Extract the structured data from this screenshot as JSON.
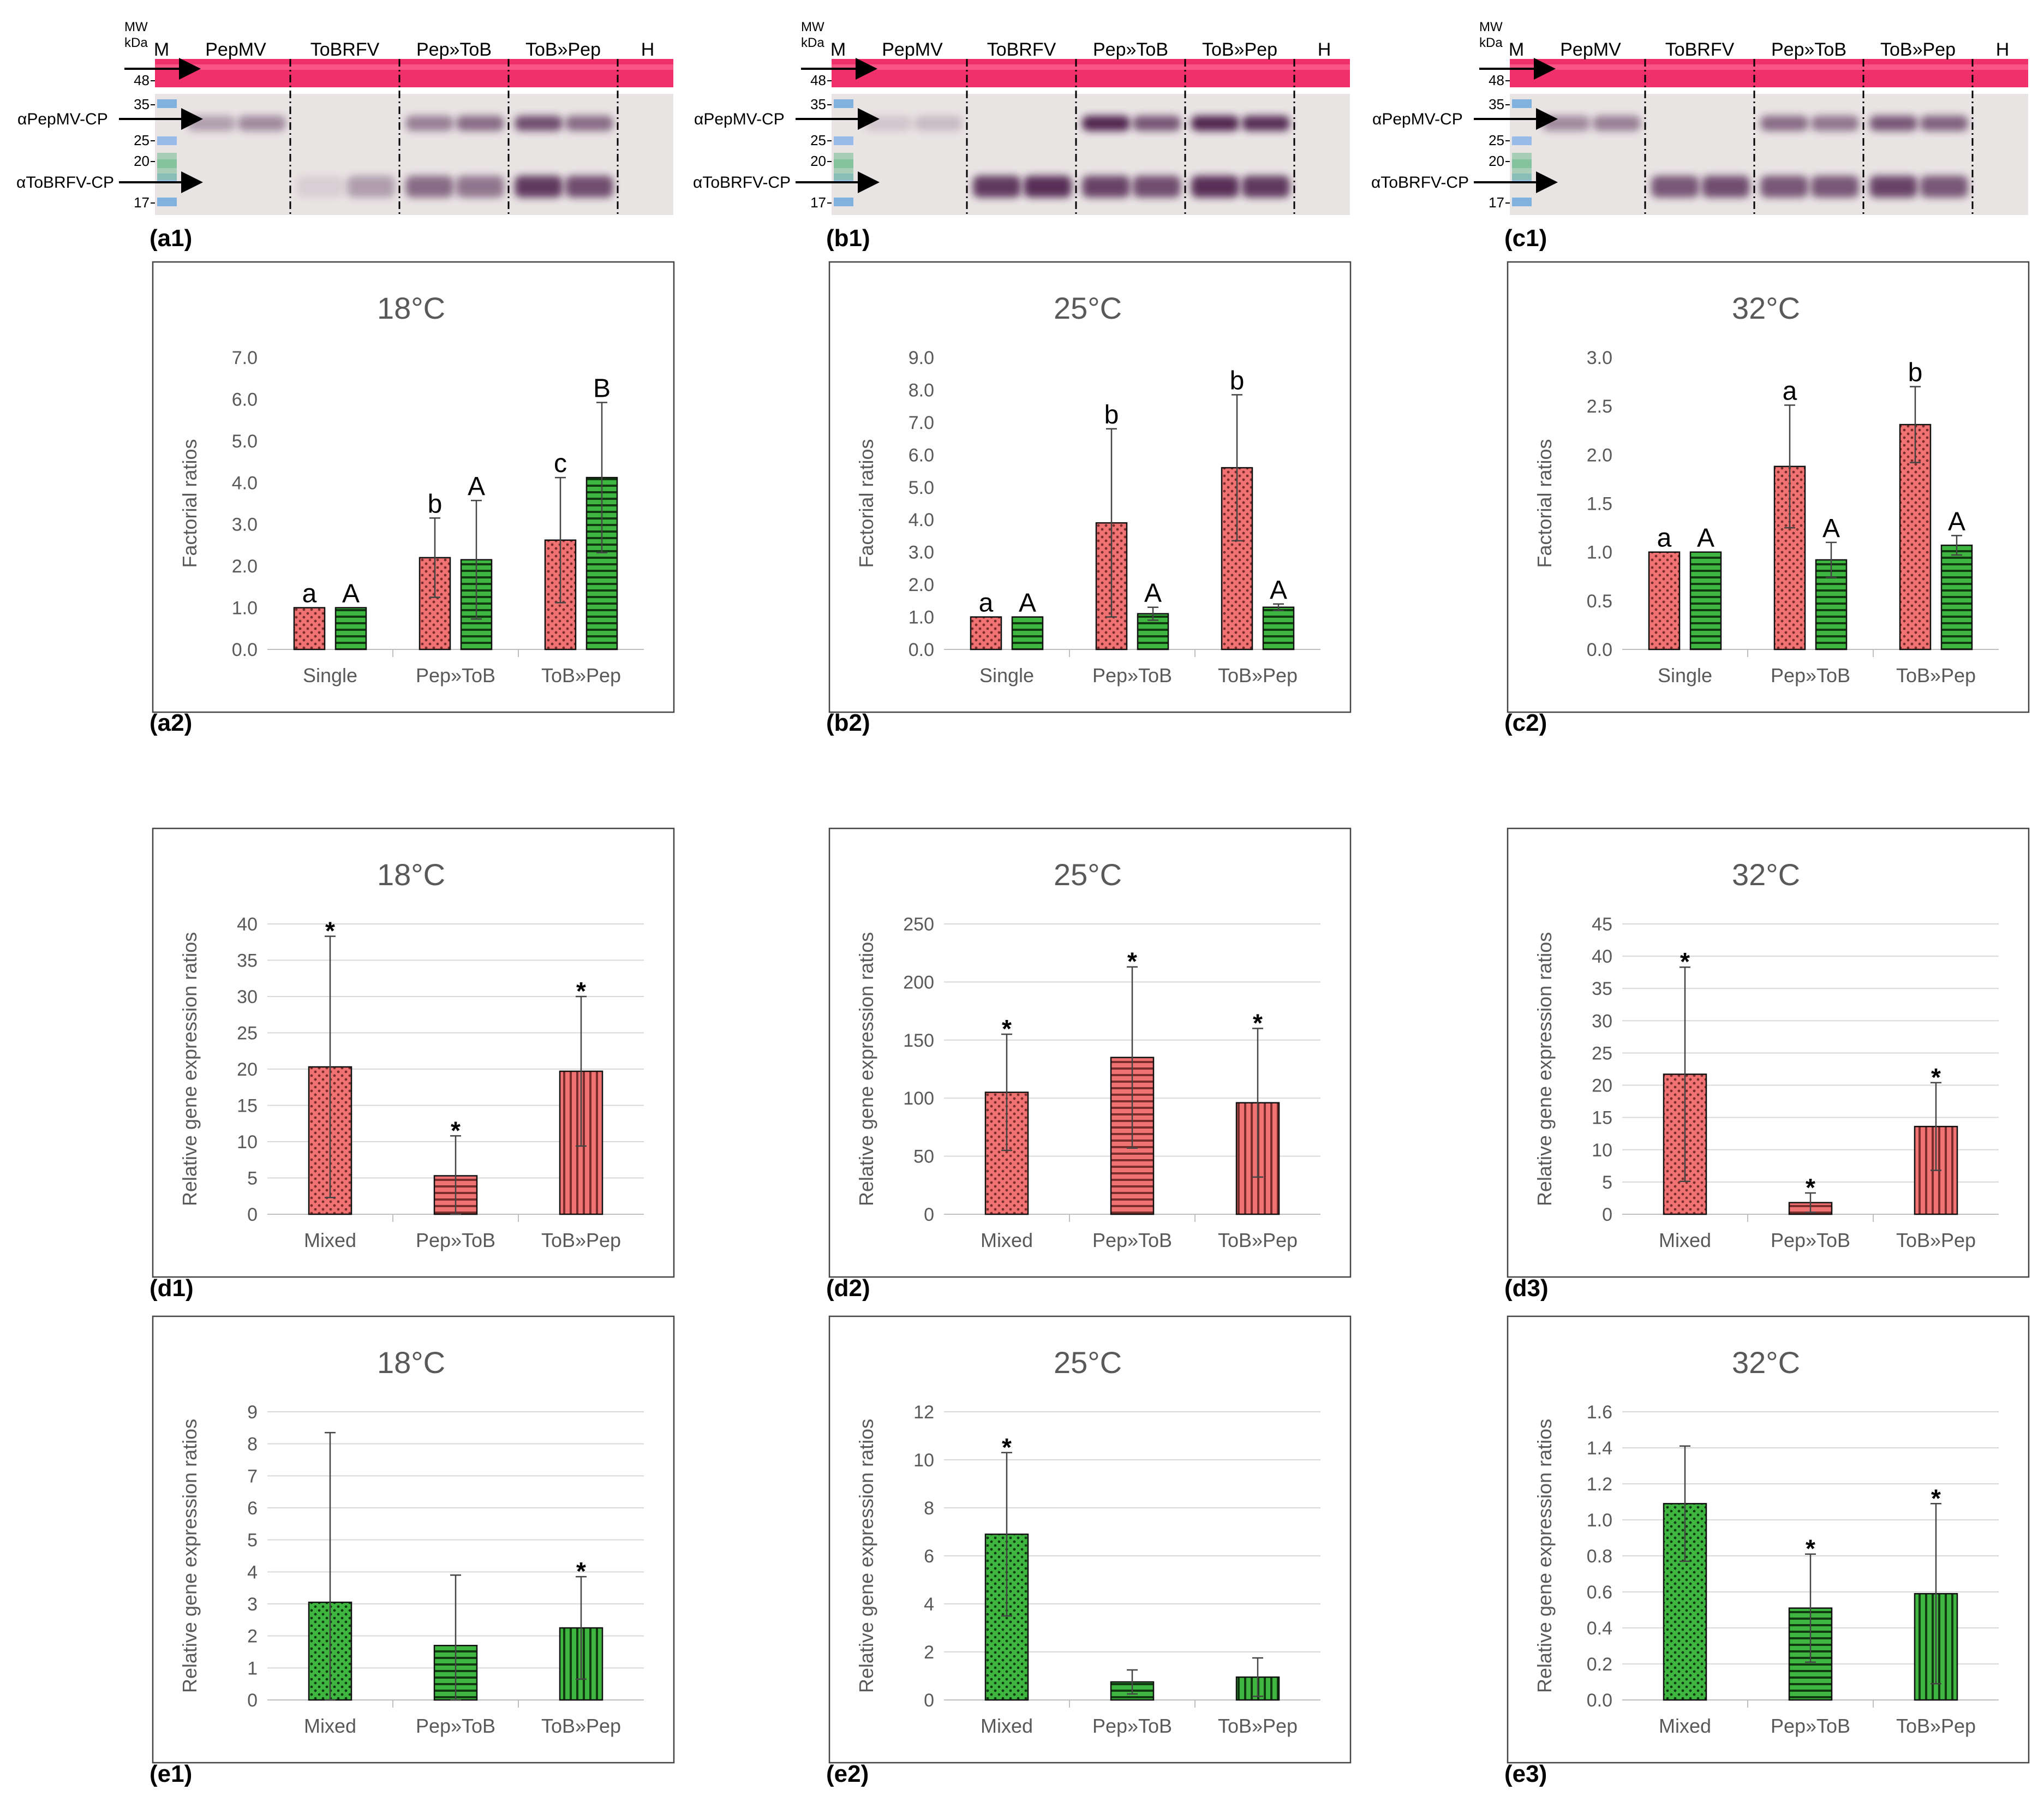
{
  "colors": {
    "pepmv": "#F07272",
    "tobrfv": "#3FB63F",
    "axis_text": "#595959",
    "grid": "#D9D9D9",
    "blot_bg": "#E9E4E4",
    "ponceau": "#F0306A",
    "band": "#4A1B4A"
  },
  "blots": [
    {
      "id": "a1",
      "mw_label": [
        "MW",
        "kDa"
      ],
      "marker_label": "M",
      "lanes": [
        "PepMV",
        "ToBRFV",
        "Pep»ToB",
        "ToB»Pep",
        "H"
      ],
      "mw_marks": [
        "48",
        "35",
        "25",
        "20",
        "17"
      ],
      "antibodies": [
        "αPepMV-CP",
        "αToBRFV-CP"
      ],
      "pepmv_band_intensity": [
        0.35,
        0.45,
        0,
        0,
        0.5,
        0.6,
        0.75,
        0.6,
        0
      ],
      "tobrfv_band_intensity": [
        0,
        0,
        0.1,
        0.35,
        0.6,
        0.55,
        0.85,
        0.75,
        0
      ]
    },
    {
      "id": "b1",
      "mw_label": [
        "MW",
        "kDa"
      ],
      "marker_label": "M",
      "lanes": [
        "PepMV",
        "ToBRFV",
        "Pep»ToB",
        "ToB»Pep",
        "H"
      ],
      "mw_marks": [
        "48",
        "35",
        "25",
        "20",
        "17"
      ],
      "antibodies": [
        "αPepMV-CP",
        "αToBRFV-CP"
      ],
      "pepmv_band_intensity": [
        0.15,
        0.2,
        0,
        0,
        0.95,
        0.7,
        0.95,
        0.9,
        0
      ],
      "tobrfv_band_intensity": [
        0,
        0,
        0.85,
        0.9,
        0.8,
        0.75,
        0.9,
        0.85,
        0
      ]
    },
    {
      "id": "c1",
      "mw_label": [
        "MW",
        "kDa"
      ],
      "marker_label": "M",
      "lanes": [
        "PepMV",
        "ToBRFV",
        "Pep»ToB",
        "ToB»Pep",
        "H"
      ],
      "mw_marks": [
        "48",
        "35",
        "25",
        "20",
        "17"
      ],
      "antibodies": [
        "αPepMV-CP",
        "αToBRFV-CP"
      ],
      "pepmv_band_intensity": [
        0.45,
        0.5,
        0,
        0,
        0.6,
        0.55,
        0.7,
        0.65,
        0
      ],
      "tobrfv_band_intensity": [
        0,
        0,
        0.7,
        0.75,
        0.7,
        0.7,
        0.8,
        0.7,
        0
      ]
    }
  ],
  "panel_labels": [
    "(a1)",
    "(b1)",
    "(c1)",
    "(a2)",
    "(b2)",
    "(c2)",
    "(d1)",
    "(d2)",
    "(d3)",
    "(e1)",
    "(e2)",
    "(e3)"
  ],
  "chart_data": [
    {
      "id": "a2",
      "type": "bar",
      "title": "18°C",
      "ylabel": "Factorial ratios",
      "xlabel": "",
      "categories": [
        "Single",
        "Pep»ToB",
        "ToB»Pep"
      ],
      "ylim": [
        0,
        7
      ],
      "yticks": [
        "0.0",
        "1.0",
        "2.0",
        "3.0",
        "4.0",
        "5.0",
        "6.0",
        "7.0"
      ],
      "ystep": 1,
      "grid": false,
      "series": [
        {
          "name": "PepMV",
          "values": [
            1.0,
            2.2,
            2.62
          ],
          "err": [
            0,
            0.95,
            1.5
          ],
          "letters": [
            "a",
            "b",
            "c"
          ]
        },
        {
          "name": "ToBRFV",
          "values": [
            1.0,
            2.15,
            4.12
          ],
          "err": [
            0,
            1.42,
            1.8
          ],
          "letters": [
            "A",
            "A",
            "B"
          ]
        }
      ]
    },
    {
      "id": "b2",
      "type": "bar",
      "title": "25°C",
      "ylabel": "Factorial ratios",
      "xlabel": "",
      "categories": [
        "Single",
        "Pep»ToB",
        "ToB»Pep"
      ],
      "ylim": [
        0,
        9
      ],
      "yticks": [
        "0.0",
        "1.0",
        "2.0",
        "3.0",
        "4.0",
        "5.0",
        "6.0",
        "7.0",
        "8.0",
        "9.0"
      ],
      "ystep": 1,
      "grid": false,
      "series": [
        {
          "name": "PepMV",
          "values": [
            1.0,
            3.9,
            5.6
          ],
          "err": [
            0,
            2.9,
            2.25
          ],
          "letters": [
            "a",
            "b",
            "b"
          ]
        },
        {
          "name": "ToBRFV",
          "values": [
            1.0,
            1.1,
            1.3
          ],
          "err": [
            0,
            0.2,
            0.1
          ],
          "letters": [
            "A",
            "A",
            "A"
          ]
        }
      ]
    },
    {
      "id": "c2",
      "type": "bar",
      "title": "32°C",
      "ylabel": "Factorial ratios",
      "xlabel": "",
      "categories": [
        "Single",
        "Pep»ToB",
        "ToB»Pep"
      ],
      "ylim": [
        0,
        3
      ],
      "yticks": [
        "0.0",
        "0.5",
        "1.0",
        "1.5",
        "2.0",
        "2.5",
        "3.0"
      ],
      "ystep": 0.5,
      "grid": false,
      "series": [
        {
          "name": "PepMV",
          "values": [
            1.0,
            1.88,
            2.31
          ],
          "err": [
            0,
            0.63,
            0.39
          ],
          "letters": [
            "a",
            "a",
            "b"
          ]
        },
        {
          "name": "ToBRFV",
          "values": [
            1.0,
            0.92,
            1.07
          ],
          "err": [
            0,
            0.18,
            0.1
          ],
          "letters": [
            "A",
            "A",
            "A"
          ]
        }
      ]
    },
    {
      "id": "d1",
      "type": "bar",
      "title": "18°C",
      "ylabel": "Relative gene expression ratios",
      "xlabel": "",
      "categories": [
        "Mixed",
        "Pep»ToB",
        "ToB»Pep"
      ],
      "ylim": [
        0,
        40
      ],
      "yticks": [
        "0",
        "5",
        "10",
        "15",
        "20",
        "25",
        "30",
        "35",
        "40"
      ],
      "ystep": 5,
      "grid": true,
      "series": [
        {
          "name": "PepMV",
          "values": [
            20.3,
            5.3,
            19.7
          ],
          "err": [
            18.0,
            5.5,
            10.3
          ],
          "letters": [
            "*",
            "*",
            "*"
          ],
          "patterns": [
            "dots",
            "hlines",
            "vlines"
          ]
        }
      ]
    },
    {
      "id": "d2",
      "type": "bar",
      "title": "25°C",
      "ylabel": "Relative gene expression ratios",
      "xlabel": "",
      "categories": [
        "Mixed",
        "Pep»ToB",
        "ToB»Pep"
      ],
      "ylim": [
        0,
        250
      ],
      "yticks": [
        "0",
        "50",
        "100",
        "150",
        "200",
        "250"
      ],
      "ystep": 50,
      "grid": true,
      "series": [
        {
          "name": "PepMV",
          "values": [
            105,
            135,
            96
          ],
          "err": [
            50,
            78,
            64
          ],
          "letters": [
            "*",
            "*",
            "*"
          ],
          "patterns": [
            "dots",
            "hlines",
            "vlines"
          ]
        }
      ]
    },
    {
      "id": "d3",
      "type": "bar",
      "title": "32°C",
      "ylabel": "Relative gene expression ratios",
      "xlabel": "",
      "categories": [
        "Mixed",
        "Pep»ToB",
        "ToB»Pep"
      ],
      "ylim": [
        0,
        45
      ],
      "yticks": [
        "0",
        "5",
        "10",
        "15",
        "20",
        "25",
        "30",
        "35",
        "40",
        "45"
      ],
      "ystep": 5,
      "grid": true,
      "series": [
        {
          "name": "PepMV",
          "values": [
            21.7,
            1.8,
            13.6
          ],
          "err": [
            16.6,
            1.5,
            6.8
          ],
          "letters": [
            "*",
            "*",
            "*"
          ],
          "patterns": [
            "dots",
            "hlines",
            "vlines"
          ]
        }
      ]
    },
    {
      "id": "e1",
      "type": "bar",
      "title": "18°C",
      "ylabel": "Relative gene expression ratios",
      "xlabel": "",
      "categories": [
        "Mixed",
        "Pep»ToB",
        "ToB»Pep"
      ],
      "ylim": [
        0,
        9
      ],
      "yticks": [
        "0",
        "1",
        "2",
        "3",
        "4",
        "5",
        "6",
        "7",
        "8",
        "9"
      ],
      "ystep": 1,
      "grid": true,
      "series": [
        {
          "name": "ToBRFV",
          "values": [
            3.05,
            1.7,
            2.25
          ],
          "err": [
            5.3,
            2.2,
            1.6
          ],
          "letters": [
            "",
            "",
            "*"
          ],
          "patterns": [
            "dots",
            "hlines",
            "vlines"
          ]
        }
      ]
    },
    {
      "id": "e2",
      "type": "bar",
      "title": "25°C",
      "ylabel": "Relative gene expression ratios",
      "xlabel": "",
      "categories": [
        "Mixed",
        "Pep»ToB",
        "ToB»Pep"
      ],
      "ylim": [
        0,
        12
      ],
      "yticks": [
        "0",
        "2",
        "4",
        "6",
        "8",
        "10",
        "12"
      ],
      "ystep": 2,
      "grid": true,
      "series": [
        {
          "name": "ToBRFV",
          "values": [
            6.9,
            0.75,
            0.95
          ],
          "err": [
            3.4,
            0.5,
            0.8
          ],
          "letters": [
            "*",
            "",
            ""
          ],
          "patterns": [
            "dots",
            "hlines",
            "vlines"
          ]
        }
      ]
    },
    {
      "id": "e3",
      "type": "bar",
      "title": "32°C",
      "ylabel": "Relative gene expression ratios",
      "xlabel": "",
      "categories": [
        "Mixed",
        "Pep»ToB",
        "ToB»Pep"
      ],
      "ylim": [
        0,
        1.6
      ],
      "yticks": [
        "0.0",
        "0.2",
        "0.4",
        "0.6",
        "0.8",
        "1.0",
        "1.2",
        "1.4",
        "1.6"
      ],
      "ystep": 0.2,
      "grid": true,
      "series": [
        {
          "name": "ToBRFV",
          "values": [
            1.09,
            0.51,
            0.59
          ],
          "err": [
            0.32,
            0.3,
            0.5
          ],
          "letters": [
            "",
            "*",
            "*"
          ],
          "patterns": [
            "dots",
            "hlines",
            "vlines"
          ]
        }
      ]
    }
  ]
}
